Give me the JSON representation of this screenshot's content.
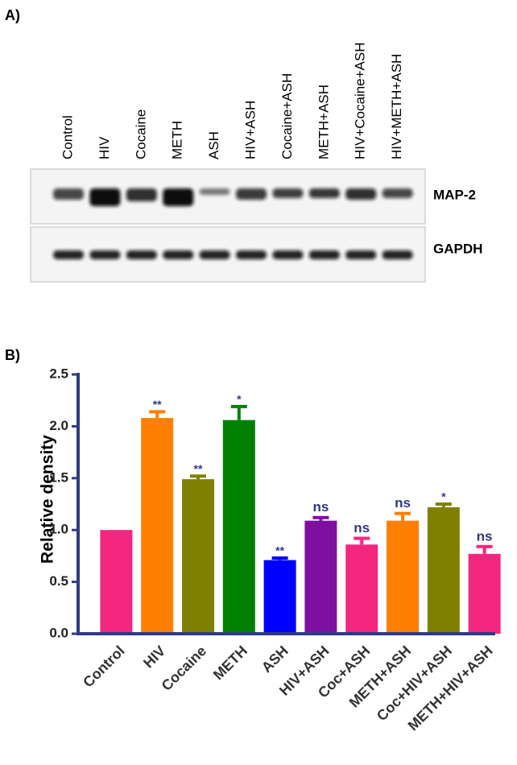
{
  "panels": [
    "A)",
    "B)"
  ],
  "blot": {
    "lanes": [
      "Control",
      "HIV",
      "Cocaine",
      "METH",
      "ASH",
      "HIV+ASH",
      "Cocaine+ASH",
      "METH+ASH",
      "HIV+Cocaine+ASH",
      "HIV+METH+ASH"
    ],
    "rows": [
      "MAP-2",
      "GAPDH"
    ]
  },
  "chart_data": {
    "type": "bar",
    "y_label": "Relative density",
    "categories": [
      "Control",
      "HIV",
      "Cocaine",
      "METH",
      "ASH",
      "HIV+ASH",
      "Coc+ASH",
      "METH+ASH",
      "Coc+HIV+ASH",
      "METH+HIV+ASH"
    ],
    "values": [
      1.0,
      2.08,
      1.49,
      2.06,
      0.71,
      1.09,
      0.86,
      1.09,
      1.22,
      0.77
    ],
    "errors": [
      0,
      0.06,
      0.03,
      0.13,
      0.02,
      0.03,
      0.06,
      0.07,
      0.03,
      0.07
    ],
    "annotations": [
      null,
      "**",
      "**",
      "*",
      "**",
      "ns",
      "ns",
      "ns",
      "*",
      "ns"
    ],
    "colors": [
      "#f5267f",
      "#ff7f00",
      "#808000",
      "#008000",
      "#0000ff",
      "#7f0fa0",
      "#f5267f",
      "#ff7f00",
      "#808000",
      "#f5267f"
    ],
    "ylim": [
      0,
      2.5
    ],
    "yticks": [
      {
        "value": 0,
        "label": "0.0"
      },
      0.5,
      {
        "value": 1,
        "label": "1.0"
      },
      1.5,
      {
        "value": 2,
        "label": "2.0"
      },
      2.5
    ]
  }
}
